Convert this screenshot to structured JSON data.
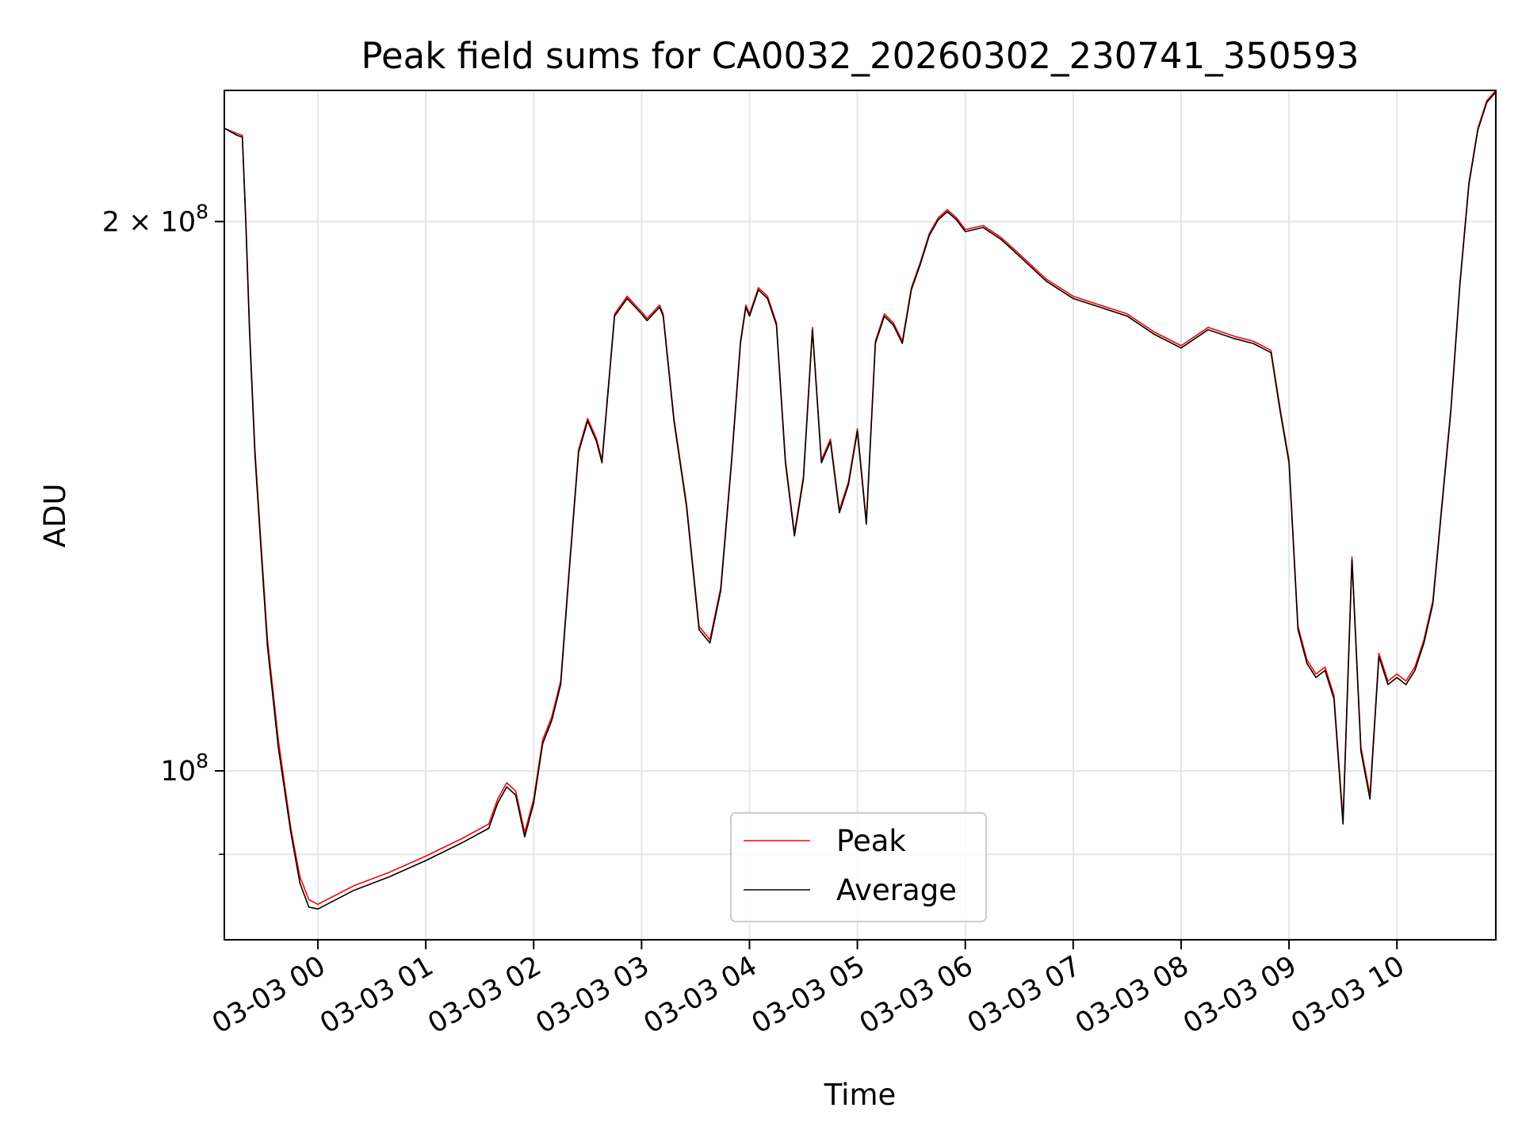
{
  "chart_data": {
    "type": "line",
    "title": "Peak field sums for CA0032_20260302_230741_350593",
    "xlabel": "Time",
    "ylabel": "ADU",
    "yscale": "log",
    "grid": true,
    "legend_position": "lower-center",
    "xlim": [
      "2026-03-02 23:08",
      "2026-03-03 10:55"
    ],
    "ylim": [
      80800000,
      236000000
    ],
    "x_ticks": [
      {
        "value": "2026-03-03 00:00",
        "label": "03-03 00"
      },
      {
        "value": "2026-03-03 01:00",
        "label": "03-03 01"
      },
      {
        "value": "2026-03-03 02:00",
        "label": "03-03 02"
      },
      {
        "value": "2026-03-03 03:00",
        "label": "03-03 03"
      },
      {
        "value": "2026-03-03 04:00",
        "label": "03-03 04"
      },
      {
        "value": "2026-03-03 05:00",
        "label": "03-03 05"
      },
      {
        "value": "2026-03-03 06:00",
        "label": "03-03 06"
      },
      {
        "value": "2026-03-03 07:00",
        "label": "03-03 07"
      },
      {
        "value": "2026-03-03 08:00",
        "label": "03-03 08"
      },
      {
        "value": "2026-03-03 09:00",
        "label": "03-03 09"
      },
      {
        "value": "2026-03-03 10:00",
        "label": "03-03 10"
      }
    ],
    "y_major_ticks": [
      {
        "value": 100000000,
        "mantissa": "",
        "exponent": "8"
      },
      {
        "value": 200000000,
        "mantissa": "2 × ",
        "exponent": "8"
      }
    ],
    "y_minor_ticks": [
      90000000
    ],
    "series": [
      {
        "name": "Peak",
        "color": "#ff0000",
        "x": [
          "2026-03-02 23:08",
          "2026-03-02 23:15",
          "2026-03-02 23:18",
          "2026-03-02 23:20",
          "2026-03-02 23:22",
          "2026-03-02 23:25",
          "2026-03-02 23:28",
          "2026-03-02 23:32",
          "2026-03-02 23:38",
          "2026-03-02 23:45",
          "2026-03-02 23:50",
          "2026-03-02 23:55",
          "2026-03-03 00:00",
          "2026-03-03 00:10",
          "2026-03-03 00:20",
          "2026-03-03 00:40",
          "2026-03-03 01:00",
          "2026-03-03 01:20",
          "2026-03-03 01:35",
          "2026-03-03 01:40",
          "2026-03-03 01:45",
          "2026-03-03 01:50",
          "2026-03-03 01:55",
          "2026-03-03 02:00",
          "2026-03-03 02:05",
          "2026-03-03 02:10",
          "2026-03-03 02:15",
          "2026-03-03 02:20",
          "2026-03-03 02:25",
          "2026-03-03 02:30",
          "2026-03-03 02:35",
          "2026-03-03 02:38",
          "2026-03-03 02:45",
          "2026-03-03 02:52",
          "2026-03-03 03:00",
          "2026-03-03 03:03",
          "2026-03-03 03:10",
          "2026-03-03 03:12",
          "2026-03-03 03:18",
          "2026-03-03 03:25",
          "2026-03-03 03:32",
          "2026-03-03 03:38",
          "2026-03-03 03:44",
          "2026-03-03 03:50",
          "2026-03-03 03:55",
          "2026-03-03 03:58",
          "2026-03-03 04:00",
          "2026-03-03 04:05",
          "2026-03-03 04:10",
          "2026-03-03 04:15",
          "2026-03-03 04:20",
          "2026-03-03 04:25",
          "2026-03-03 04:30",
          "2026-03-03 04:35",
          "2026-03-03 04:40",
          "2026-03-03 04:45",
          "2026-03-03 04:50",
          "2026-03-03 04:55",
          "2026-03-03 05:00",
          "2026-03-03 05:05",
          "2026-03-03 05:10",
          "2026-03-03 05:15",
          "2026-03-03 05:20",
          "2026-03-03 05:25",
          "2026-03-03 05:30",
          "2026-03-03 05:35",
          "2026-03-03 05:40",
          "2026-03-03 05:45",
          "2026-03-03 05:50",
          "2026-03-03 05:55",
          "2026-03-03 06:00",
          "2026-03-03 06:10",
          "2026-03-03 06:20",
          "2026-03-03 06:30",
          "2026-03-03 06:45",
          "2026-03-03 07:00",
          "2026-03-03 07:15",
          "2026-03-03 07:30",
          "2026-03-03 07:45",
          "2026-03-03 08:00",
          "2026-03-03 08:15",
          "2026-03-03 08:30",
          "2026-03-03 08:40",
          "2026-03-03 08:45",
          "2026-03-03 08:50",
          "2026-03-03 08:55",
          "2026-03-03 09:00",
          "2026-03-03 09:05",
          "2026-03-03 09:10",
          "2026-03-03 09:15",
          "2026-03-03 09:20",
          "2026-03-03 09:25",
          "2026-03-03 09:30",
          "2026-03-03 09:35",
          "2026-03-03 09:40",
          "2026-03-03 09:45",
          "2026-03-03 09:50",
          "2026-03-03 09:55",
          "2026-03-03 10:00",
          "2026-03-03 10:05",
          "2026-03-03 10:10",
          "2026-03-03 10:15",
          "2026-03-03 10:20",
          "2026-03-03 10:25",
          "2026-03-03 10:30",
          "2026-03-03 10:35",
          "2026-03-03 10:40",
          "2026-03-03 10:45",
          "2026-03-03 10:50",
          "2026-03-03 10:55"
        ],
        "values": [
          225000000,
          223500000,
          223000000,
          200000000,
          175000000,
          150000000,
          135000000,
          118000000,
          104000000,
          93000000,
          87500000,
          85000000,
          84500000,
          85500000,
          86500000,
          88000000,
          89800000,
          91800000,
          93500000,
          96500000,
          98500000,
          97500000,
          92500000,
          96500000,
          104000000,
          107000000,
          112000000,
          130000000,
          150000000,
          156000000,
          152000000,
          148000000,
          178000000,
          182000000,
          178500000,
          177000000,
          180000000,
          178000000,
          156000000,
          140000000,
          120000000,
          118000000,
          126000000,
          148000000,
          172000000,
          180000000,
          178000000,
          184000000,
          182000000,
          176000000,
          148000000,
          135000000,
          145000000,
          175000000,
          148000000,
          152000000,
          139000000,
          144000000,
          154000000,
          137000000,
          172000000,
          178000000,
          176000000,
          172000000,
          184000000,
          190000000,
          197000000,
          201000000,
          203000000,
          201000000,
          198000000,
          199000000,
          196000000,
          192000000,
          186000000,
          182000000,
          180000000,
          178000000,
          174000000,
          171000000,
          175000000,
          173000000,
          172000000,
          171000000,
          170000000,
          158000000,
          148000000,
          120000000,
          115000000,
          113000000,
          114000000,
          110000000,
          94000000,
          131000000,
          103000000,
          97000000,
          116000000,
          112000000,
          113000000,
          112000000,
          114000000,
          118000000,
          124000000,
          140000000,
          158000000,
          185000000,
          210000000,
          225000000,
          233000000,
          236000000
        ]
      },
      {
        "name": "Average",
        "color": "#000000",
        "x": [
          "2026-03-02 23:08",
          "2026-03-02 23:15",
          "2026-03-02 23:18",
          "2026-03-02 23:20",
          "2026-03-02 23:22",
          "2026-03-02 23:25",
          "2026-03-02 23:28",
          "2026-03-02 23:32",
          "2026-03-02 23:38",
          "2026-03-02 23:45",
          "2026-03-02 23:50",
          "2026-03-02 23:55",
          "2026-03-03 00:00",
          "2026-03-03 00:10",
          "2026-03-03 00:20",
          "2026-03-03 00:40",
          "2026-03-03 01:00",
          "2026-03-03 01:20",
          "2026-03-03 01:35",
          "2026-03-03 01:40",
          "2026-03-03 01:45",
          "2026-03-03 01:50",
          "2026-03-03 01:55",
          "2026-03-03 02:00",
          "2026-03-03 02:05",
          "2026-03-03 02:10",
          "2026-03-03 02:15",
          "2026-03-03 02:20",
          "2026-03-03 02:25",
          "2026-03-03 02:30",
          "2026-03-03 02:35",
          "2026-03-03 02:38",
          "2026-03-03 02:45",
          "2026-03-03 02:52",
          "2026-03-03 03:00",
          "2026-03-03 03:03",
          "2026-03-03 03:10",
          "2026-03-03 03:12",
          "2026-03-03 03:18",
          "2026-03-03 03:25",
          "2026-03-03 03:32",
          "2026-03-03 03:38",
          "2026-03-03 03:44",
          "2026-03-03 03:50",
          "2026-03-03 03:55",
          "2026-03-03 03:58",
          "2026-03-03 04:00",
          "2026-03-03 04:05",
          "2026-03-03 04:10",
          "2026-03-03 04:15",
          "2026-03-03 04:20",
          "2026-03-03 04:25",
          "2026-03-03 04:30",
          "2026-03-03 04:35",
          "2026-03-03 04:40",
          "2026-03-03 04:45",
          "2026-03-03 04:50",
          "2026-03-03 04:55",
          "2026-03-03 05:00",
          "2026-03-03 05:05",
          "2026-03-03 05:10",
          "2026-03-03 05:15",
          "2026-03-03 05:20",
          "2026-03-03 05:25",
          "2026-03-03 05:30",
          "2026-03-03 05:35",
          "2026-03-03 05:40",
          "2026-03-03 05:45",
          "2026-03-03 05:50",
          "2026-03-03 05:55",
          "2026-03-03 06:00",
          "2026-03-03 06:10",
          "2026-03-03 06:20",
          "2026-03-03 06:30",
          "2026-03-03 06:45",
          "2026-03-03 07:00",
          "2026-03-03 07:15",
          "2026-03-03 07:30",
          "2026-03-03 07:45",
          "2026-03-03 08:00",
          "2026-03-03 08:15",
          "2026-03-03 08:30",
          "2026-03-03 08:40",
          "2026-03-03 08:45",
          "2026-03-03 08:50",
          "2026-03-03 08:55",
          "2026-03-03 09:00",
          "2026-03-03 09:05",
          "2026-03-03 09:10",
          "2026-03-03 09:15",
          "2026-03-03 09:20",
          "2026-03-03 09:25",
          "2026-03-03 09:30",
          "2026-03-03 09:35",
          "2026-03-03 09:40",
          "2026-03-03 09:45",
          "2026-03-03 09:50",
          "2026-03-03 09:55",
          "2026-03-03 10:00",
          "2026-03-03 10:05",
          "2026-03-03 10:10",
          "2026-03-03 10:15",
          "2026-03-03 10:20",
          "2026-03-03 10:25",
          "2026-03-03 10:30",
          "2026-03-03 10:35",
          "2026-03-03 10:40",
          "2026-03-03 10:45",
          "2026-03-03 10:50",
          "2026-03-03 10:55"
        ],
        "values": [
          225000000,
          223000000,
          222500000,
          199000000,
          174000000,
          149000000,
          134000000,
          117000000,
          103000000,
          92500000,
          86800000,
          84200000,
          84000000,
          85000000,
          86000000,
          87500000,
          89300000,
          91300000,
          93000000,
          96000000,
          98000000,
          97000000,
          92000000,
          96000000,
          103500000,
          106500000,
          111500000,
          129500000,
          149500000,
          155500000,
          151500000,
          147500000,
          177500000,
          181500000,
          178000000,
          176500000,
          179500000,
          177500000,
          155500000,
          139500000,
          119500000,
          117500000,
          125500000,
          147500000,
          171500000,
          179500000,
          177500000,
          183500000,
          181500000,
          175500000,
          147500000,
          134500000,
          144500000,
          174500000,
          147500000,
          151500000,
          138500000,
          143500000,
          153500000,
          136500000,
          171500000,
          177500000,
          175500000,
          171500000,
          183500000,
          189500000,
          196500000,
          200500000,
          202500000,
          200500000,
          197500000,
          198500000,
          195500000,
          191500000,
          185500000,
          181500000,
          179500000,
          177500000,
          173500000,
          170500000,
          174500000,
          172500000,
          171500000,
          170500000,
          169500000,
          157500000,
          147500000,
          119500000,
          114500000,
          112500000,
          113500000,
          109500000,
          93500000,
          130500000,
          102500000,
          96500000,
          115500000,
          111500000,
          112500000,
          111500000,
          113500000,
          117500000,
          123500000,
          139500000,
          157500000,
          184500000,
          209500000,
          224500000,
          232500000,
          235500000
        ]
      }
    ]
  }
}
